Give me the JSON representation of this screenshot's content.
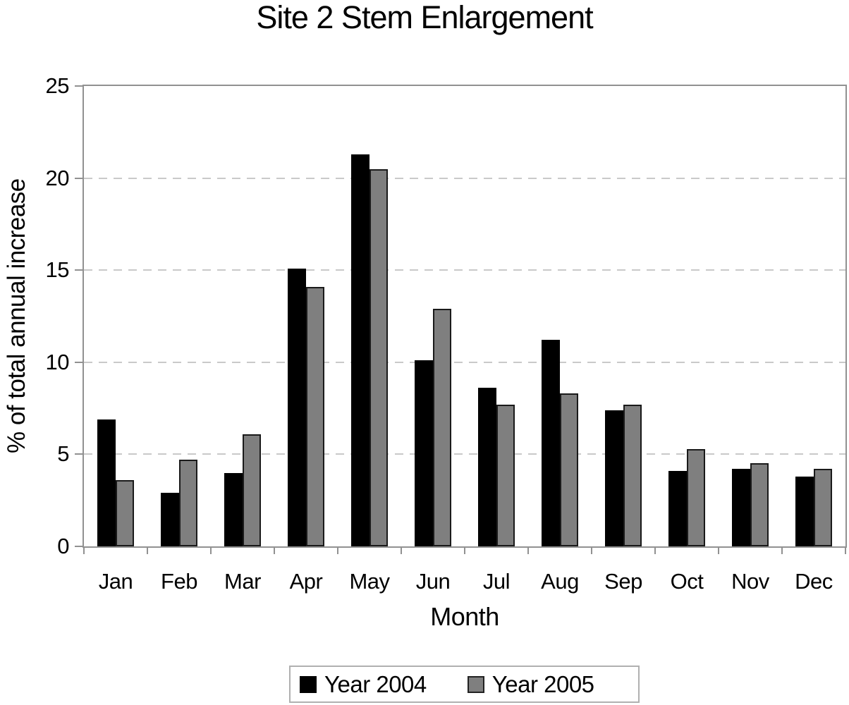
{
  "title": "Site 2 Stem Enlargement",
  "chart_data": {
    "type": "bar",
    "title": "Site 2 Stem Enlargement",
    "xlabel": "Month",
    "ylabel": "% of total annual increase",
    "ylim": [
      0,
      25
    ],
    "yticks": [
      0,
      5,
      10,
      15,
      20,
      25
    ],
    "gridlines": {
      "values": [
        5,
        10,
        15,
        20
      ],
      "style": "dashed",
      "color": "#c9c9c9"
    },
    "categories": [
      "Jan",
      "Feb",
      "Mar",
      "Apr",
      "May",
      "Jun",
      "Jul",
      "Aug",
      "Sep",
      "Oct",
      "Nov",
      "Dec"
    ],
    "series": [
      {
        "name": "Year 2004",
        "color": "#000000",
        "values": [
          6.9,
          2.9,
          4.0,
          15.1,
          21.3,
          10.1,
          8.6,
          11.2,
          7.4,
          4.1,
          4.2,
          3.8
        ]
      },
      {
        "name": "Year 2005",
        "color": "#7f7f7f",
        "values": [
          3.6,
          4.7,
          6.1,
          14.1,
          20.5,
          12.9,
          7.7,
          8.3,
          7.7,
          5.3,
          4.5,
          4.2
        ]
      }
    ],
    "legend_position": "bottom"
  },
  "colors": {
    "bar_2004": "#000000",
    "bar_2005": "#7f7f7f",
    "frame": "#919191",
    "gridline": "#c9c9c9",
    "legend_border": "#b0b0b0",
    "text": "#000000",
    "background": "#ffffff"
  }
}
